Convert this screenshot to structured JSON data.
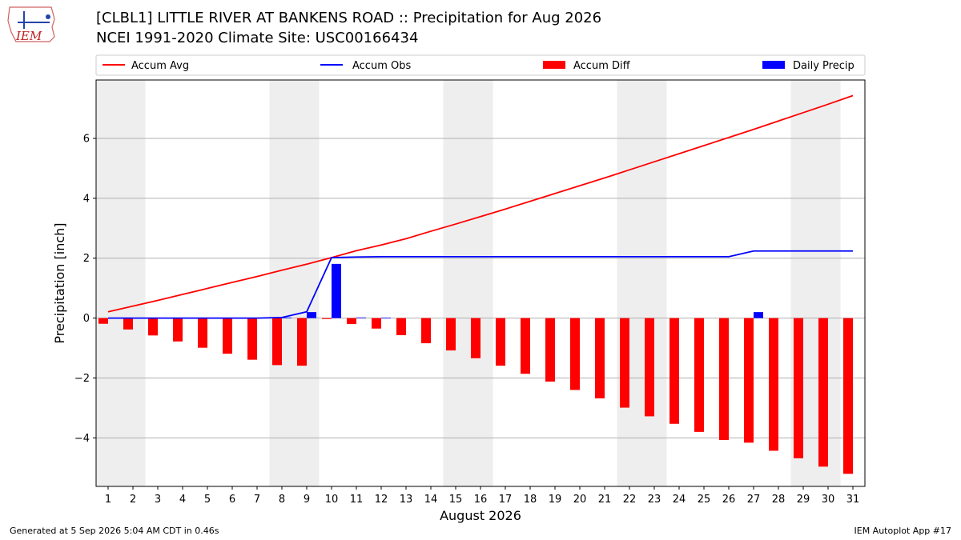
{
  "header": {
    "title_line1": "[CLBL1] LITTLE RIVER AT BANKENS ROAD :: Precipitation for Aug 2026",
    "title_line2": "NCEI 1991-2020 Climate Site: USC00166434",
    "logo_text": "IEM"
  },
  "footer": {
    "generated": "Generated at 5 Sep 2026 5:04 AM CDT in 0.46s",
    "app": "IEM Autoplot App #17"
  },
  "colors": {
    "avg": "#ff0000",
    "obs": "#0000ff",
    "diff": "#ff0000",
    "daily": "#0000ff",
    "weekend_band": "#eeeeee",
    "grid": "#b0b0b0"
  },
  "chart_data": {
    "type": "bar",
    "xlabel": "August 2026",
    "ylabel": "Precipitation [inch]",
    "ylim": [
      -5.62,
      7.95
    ],
    "yticks": [
      -4,
      -2,
      0,
      2,
      4,
      6
    ],
    "grid": "y",
    "legend_placement": "top",
    "categories": [
      "1",
      "2",
      "3",
      "4",
      "5",
      "6",
      "7",
      "8",
      "9",
      "10",
      "11",
      "12",
      "13",
      "14",
      "15",
      "16",
      "17",
      "18",
      "19",
      "20",
      "21",
      "22",
      "23",
      "24",
      "25",
      "26",
      "27",
      "28",
      "29",
      "30",
      "31"
    ],
    "weekend_days": [
      1,
      2,
      8,
      9,
      15,
      16,
      22,
      23,
      29,
      30
    ],
    "series": [
      {
        "name": "Accum Avg",
        "kind": "line",
        "values": [
          0.21,
          0.4,
          0.59,
          0.79,
          0.99,
          1.19,
          1.39,
          1.6,
          1.8,
          2.02,
          2.25,
          2.44,
          2.65,
          2.9,
          3.14,
          3.39,
          3.64,
          3.9,
          4.16,
          4.42,
          4.68,
          4.95,
          5.22,
          5.49,
          5.76,
          6.03,
          6.3,
          6.58,
          6.86,
          7.14,
          7.43
        ]
      },
      {
        "name": "Accum Obs",
        "kind": "line",
        "values": [
          0.0,
          0.0,
          0.0,
          0.0,
          0.0,
          0.0,
          0.0,
          0.02,
          0.21,
          2.02,
          2.04,
          2.05,
          2.05,
          2.05,
          2.05,
          2.05,
          2.05,
          2.05,
          2.05,
          2.05,
          2.05,
          2.05,
          2.05,
          2.05,
          2.05,
          2.05,
          2.24,
          2.24,
          2.24,
          2.24,
          2.24
        ]
      },
      {
        "name": "Accum Diff",
        "kind": "bar",
        "values": [
          -0.19,
          -0.38,
          -0.58,
          -0.78,
          -0.99,
          -1.19,
          -1.39,
          -1.57,
          -1.59,
          -0.03,
          -0.2,
          -0.35,
          -0.57,
          -0.84,
          -1.08,
          -1.34,
          -1.59,
          -1.86,
          -2.12,
          -2.4,
          -2.68,
          -2.99,
          -3.28,
          -3.53,
          -3.8,
          -4.07,
          -4.16,
          -4.43,
          -4.68,
          -4.96,
          -5.2
        ]
      },
      {
        "name": "Daily Precip",
        "kind": "bar",
        "values": [
          0,
          0,
          0,
          0,
          0,
          0,
          0,
          0.02,
          0.2,
          1.81,
          0.02,
          0.01,
          0,
          0,
          0,
          0,
          0,
          0,
          0,
          0,
          0,
          0,
          0,
          0,
          0,
          0,
          0.2,
          0,
          0,
          0,
          0
        ]
      }
    ]
  }
}
